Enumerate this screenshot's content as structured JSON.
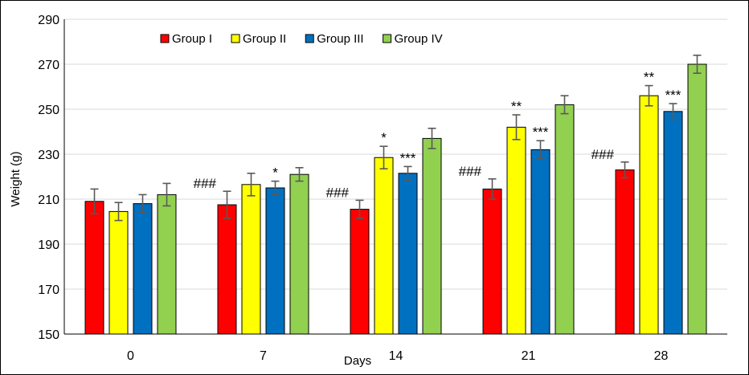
{
  "chart_data": {
    "type": "bar",
    "title": "",
    "xlabel": "Days",
    "ylabel": "Weight (g)",
    "ylim": [
      150,
      290
    ],
    "yticks": [
      150,
      170,
      190,
      210,
      230,
      250,
      270,
      290
    ],
    "grid": "horizontal",
    "legend_position": "top-left",
    "categories": [
      "0",
      "7",
      "14",
      "21",
      "28"
    ],
    "series": [
      {
        "name": "Group I",
        "color": "#ff0000",
        "values": [
          209,
          207.5,
          205.5,
          214.5,
          223
        ],
        "errors": [
          5.5,
          6,
          4,
          4.5,
          3.5
        ],
        "annotations": [
          "",
          "###",
          "###",
          "###",
          "###"
        ]
      },
      {
        "name": "Group II",
        "color": "#ffff00",
        "values": [
          204.5,
          216.5,
          228.5,
          242,
          256
        ],
        "errors": [
          4,
          5,
          5,
          5.5,
          4.5
        ],
        "annotations": [
          "",
          "",
          "*",
          "**",
          "**"
        ]
      },
      {
        "name": "Group III",
        "color": "#0070c0",
        "values": [
          208,
          215,
          221.5,
          232,
          249
        ],
        "errors": [
          4,
          3,
          3,
          4,
          3.5
        ],
        "annotations": [
          "",
          "*",
          "***",
          "***",
          "***"
        ]
      },
      {
        "name": "Group IV",
        "color": "#92d050",
        "values": [
          212,
          221,
          237,
          252,
          270
        ],
        "errors": [
          5,
          3,
          4.5,
          4,
          4
        ],
        "annotations": [
          "",
          "",
          "",
          "",
          ""
        ]
      }
    ]
  }
}
